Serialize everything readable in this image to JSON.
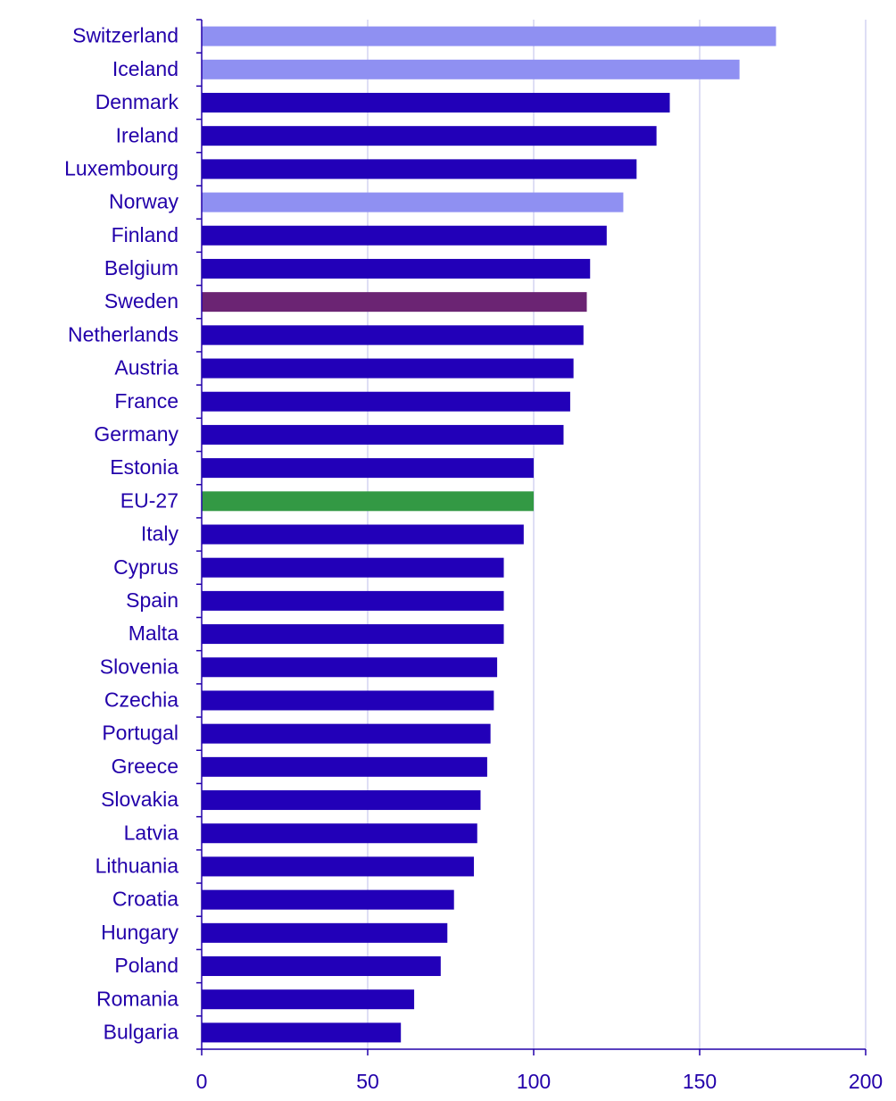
{
  "chart_data": {
    "type": "bar",
    "orientation": "horizontal",
    "categories": [
      "Switzerland",
      "Iceland",
      "Denmark",
      "Ireland",
      "Luxembourg",
      "Norway",
      "Finland",
      "Belgium",
      "Sweden",
      "Netherlands",
      "Austria",
      "France",
      "Germany",
      "Estonia",
      "EU-27",
      "Italy",
      "Cyprus",
      "Spain",
      "Malta",
      "Slovenia",
      "Czechia",
      "Portugal",
      "Greece",
      "Slovakia",
      "Latvia",
      "Lithuania",
      "Croatia",
      "Hungary",
      "Poland",
      "Romania",
      "Bulgaria"
    ],
    "values": [
      173,
      162,
      141,
      137,
      131,
      127,
      122,
      117,
      116,
      115,
      112,
      111,
      109,
      100,
      100,
      97,
      91,
      91,
      91,
      89,
      88,
      87,
      86,
      84,
      83,
      82,
      76,
      74,
      72,
      64,
      60
    ],
    "bar_colors": [
      "#8f90f2",
      "#8f90f2",
      "#2200b8",
      "#2200b8",
      "#2200b8",
      "#8f90f2",
      "#2200b8",
      "#2200b8",
      "#6b2473",
      "#2200b8",
      "#2200b8",
      "#2200b8",
      "#2200b8",
      "#2200b8",
      "#339944",
      "#2200b8",
      "#2200b8",
      "#2200b8",
      "#2200b8",
      "#2200b8",
      "#2200b8",
      "#2200b8",
      "#2200b8",
      "#2200b8",
      "#2200b8",
      "#2200b8",
      "#2200b8",
      "#2200b8",
      "#2200b8",
      "#2200b8",
      "#2200b8"
    ],
    "xlim": [
      0,
      200
    ],
    "xticks": [
      "0",
      "50",
      "100",
      "150",
      "200"
    ],
    "grid": true,
    "title": "",
    "xlabel": "",
    "ylabel": ""
  }
}
